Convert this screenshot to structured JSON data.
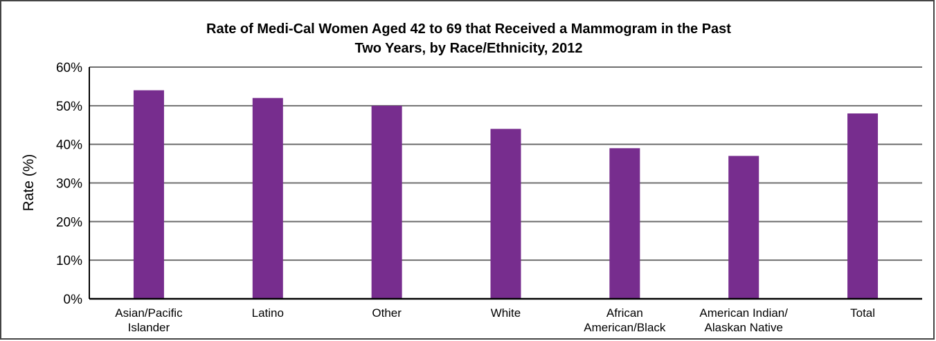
{
  "chart_data": {
    "type": "bar",
    "title_lines": [
      "Rate of Medi-Cal Women Aged 42 to 69 that Received a Mammogram in the Past",
      "Two Years, by Race/Ethnicity, 2012"
    ],
    "xlabel": "",
    "ylabel": "Rate (%)",
    "ylim": [
      0,
      60
    ],
    "yticks": [
      0,
      10,
      20,
      30,
      40,
      50,
      60
    ],
    "ytick_labels": [
      "0%",
      "10%",
      "20%",
      "30%",
      "40%",
      "50%",
      "60%"
    ],
    "grid": true,
    "legend": "none",
    "bar_color": "#772D8E",
    "grid_color": "#6E6E6E",
    "categories": [
      [
        "Asian/Pacific",
        "Islander"
      ],
      [
        "Latino"
      ],
      [
        "Other"
      ],
      [
        "White"
      ],
      [
        "African",
        "American/Black"
      ],
      [
        "American Indian/",
        "Alaskan Native"
      ],
      [
        "Total"
      ]
    ],
    "values": [
      54,
      52,
      50,
      44,
      39,
      37,
      48
    ]
  }
}
